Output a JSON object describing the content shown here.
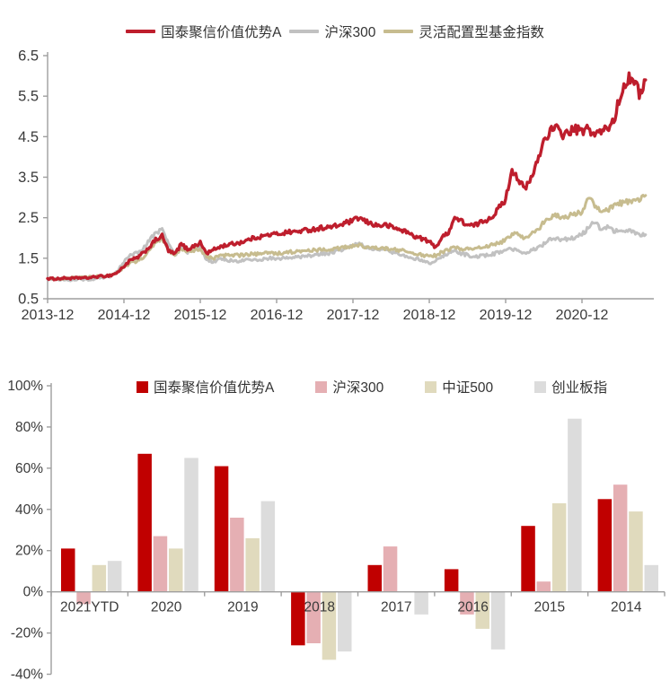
{
  "chart_data": [
    {
      "type": "line",
      "title": "",
      "legend_position": "top",
      "grid": false,
      "x_ticks": [
        "2013-12",
        "2014-12",
        "2015-12",
        "2016-12",
        "2017-12",
        "2018-12",
        "2019-12",
        "2020-12"
      ],
      "x_note": "values are monthly, starting 2013-12, extending to 2021-10",
      "ylim": [
        0.5,
        6.5
      ],
      "y_ticks": [
        "6.5",
        "5.5",
        "4.5",
        "3.5",
        "2.5",
        "1.5",
        "0.5"
      ],
      "series": [
        {
          "name": "国泰聚信价值优势A",
          "color": "#BE1E2D",
          "values": [
            1.0,
            0.99,
            1.0,
            1.01,
            1.0,
            1.02,
            1.01,
            1.03,
            1.05,
            1.06,
            1.08,
            1.15,
            1.3,
            1.45,
            1.5,
            1.62,
            1.78,
            1.95,
            2.05,
            1.68,
            1.6,
            1.85,
            1.72,
            1.8,
            1.88,
            1.62,
            1.7,
            1.78,
            1.82,
            1.85,
            1.88,
            1.92,
            1.98,
            2.02,
            2.05,
            2.08,
            2.1,
            2.12,
            2.15,
            2.15,
            2.18,
            2.2,
            2.22,
            2.25,
            2.26,
            2.28,
            2.32,
            2.38,
            2.42,
            2.5,
            2.4,
            2.35,
            2.3,
            2.32,
            2.28,
            2.22,
            2.18,
            2.1,
            2.02,
            1.98,
            1.9,
            1.78,
            2.0,
            2.15,
            2.5,
            2.42,
            2.32,
            2.3,
            2.38,
            2.45,
            2.55,
            2.75,
            2.95,
            3.7,
            3.45,
            3.2,
            3.45,
            3.9,
            4.4,
            4.65,
            4.7,
            4.55,
            4.62,
            4.68,
            4.62,
            4.7,
            4.55,
            4.62,
            4.7,
            4.9,
            5.5,
            5.9,
            6.0,
            5.55,
            5.9
          ]
        },
        {
          "name": "沪深300",
          "color": "#C1C1C1",
          "values": [
            1.0,
            0.99,
            0.97,
            0.96,
            0.97,
            0.98,
            0.97,
            0.98,
            1.0,
            1.02,
            1.06,
            1.18,
            1.42,
            1.6,
            1.62,
            1.72,
            1.95,
            2.1,
            2.25,
            1.85,
            1.58,
            1.8,
            1.65,
            1.72,
            1.75,
            1.45,
            1.42,
            1.47,
            1.45,
            1.44,
            1.42,
            1.45,
            1.47,
            1.45,
            1.48,
            1.5,
            1.48,
            1.5,
            1.52,
            1.54,
            1.53,
            1.55,
            1.58,
            1.6,
            1.62,
            1.65,
            1.7,
            1.75,
            1.8,
            1.9,
            1.78,
            1.75,
            1.72,
            1.7,
            1.65,
            1.62,
            1.58,
            1.52,
            1.48,
            1.45,
            1.38,
            1.42,
            1.55,
            1.62,
            1.68,
            1.62,
            1.58,
            1.52,
            1.55,
            1.58,
            1.6,
            1.65,
            1.7,
            1.72,
            1.68,
            1.62,
            1.68,
            1.75,
            1.85,
            2.0,
            1.98,
            1.95,
            1.98,
            2.02,
            2.08,
            2.25,
            2.42,
            2.2,
            2.28,
            2.18,
            2.15,
            2.2,
            2.15,
            2.08,
            2.08
          ]
        },
        {
          "name": "灵活配置型基金指数",
          "color": "#C7BC8F",
          "values": [
            1.0,
            1.0,
            1.0,
            1.01,
            1.02,
            1.04,
            1.03,
            1.04,
            1.06,
            1.07,
            1.09,
            1.14,
            1.28,
            1.38,
            1.42,
            1.52,
            1.68,
            1.88,
            2.0,
            1.7,
            1.58,
            1.75,
            1.65,
            1.7,
            1.74,
            1.52,
            1.5,
            1.55,
            1.57,
            1.58,
            1.57,
            1.58,
            1.6,
            1.6,
            1.62,
            1.63,
            1.62,
            1.63,
            1.65,
            1.66,
            1.67,
            1.68,
            1.7,
            1.72,
            1.72,
            1.73,
            1.75,
            1.78,
            1.8,
            1.82,
            1.78,
            1.76,
            1.74,
            1.75,
            1.72,
            1.7,
            1.68,
            1.64,
            1.6,
            1.58,
            1.55,
            1.57,
            1.65,
            1.7,
            1.78,
            1.74,
            1.72,
            1.73,
            1.76,
            1.8,
            1.83,
            1.88,
            1.95,
            2.1,
            2.08,
            2.0,
            2.1,
            2.2,
            2.38,
            2.5,
            2.55,
            2.5,
            2.55,
            2.6,
            2.65,
            3.0,
            2.8,
            2.65,
            2.7,
            2.78,
            2.85,
            2.9,
            2.92,
            2.95,
            3.05
          ]
        }
      ]
    },
    {
      "type": "bar",
      "title": "",
      "legend_position": "top",
      "grid": false,
      "unit": "%",
      "categories": [
        "2021YTD",
        "2020",
        "2019",
        "2018",
        "2017",
        "2016",
        "2015",
        "2014"
      ],
      "ylim": [
        -40,
        100
      ],
      "y_ticks": [
        "100%",
        "80%",
        "60%",
        "40%",
        "20%",
        "0%",
        "-20%",
        "-40%"
      ],
      "series": [
        {
          "name": "国泰聚信价值优势A",
          "color": "#C00000",
          "values": [
            21,
            67,
            61,
            -26,
            13,
            11,
            32,
            45
          ]
        },
        {
          "name": "沪深300",
          "color": "#E5AFB3",
          "values": [
            -6,
            27,
            36,
            -25,
            22,
            -11,
            5,
            52
          ]
        },
        {
          "name": "中证500",
          "color": "#E0DABD",
          "values": [
            13,
            21,
            26,
            -33,
            0,
            -18,
            43,
            39
          ]
        },
        {
          "name": "创业板指",
          "color": "#DCDCDC",
          "values": [
            15,
            65,
            44,
            -29,
            -11,
            -28,
            84,
            13
          ]
        }
      ]
    }
  ],
  "style": {
    "axis_color": "#9E9E9E",
    "label_color": "#3a3a3a"
  }
}
